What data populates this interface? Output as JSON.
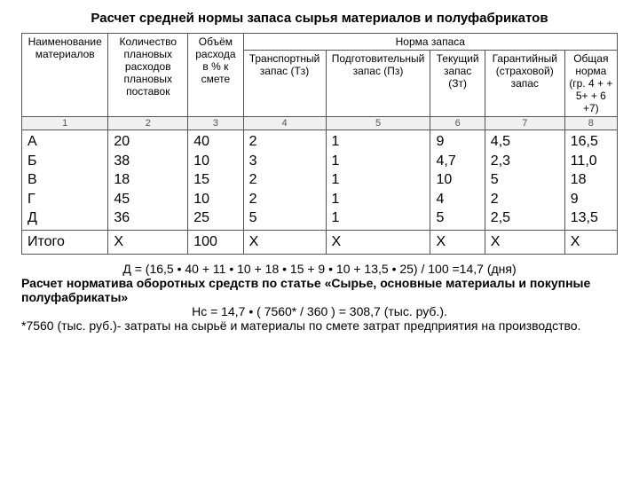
{
  "title": "Расчет средней нормы запаса сырья материалов и полуфабрикатов",
  "headers": {
    "h1": "Наименование материалов",
    "h2": "Количество плановых расходов плановых поставок",
    "h3": "Объём расхода в % к смете",
    "hgroup": "Норма запаса",
    "h4": "Транспортный запас (Тз)",
    "h5": "Подготовительный запас (Пз)",
    "h6": "Текущий запас (Зт)",
    "h7": "Гарантийный (страховой) запас",
    "h8": "Общая норма (гр. 4 + + 5+ + 6 +7)"
  },
  "colnums": {
    "c1": "1",
    "c2": "2",
    "c3": "3",
    "c4": "4",
    "c5": "5",
    "c6": "6",
    "c7": "7",
    "c8": "8"
  },
  "data": {
    "names": [
      "А",
      "Б",
      "В",
      "Г",
      "Д"
    ],
    "col2": [
      "20",
      "38",
      "18",
      "45",
      "36"
    ],
    "col3": [
      "40",
      "10",
      "15",
      "10",
      "25"
    ],
    "col4": [
      "2",
      "3",
      "2",
      "2",
      " 5"
    ],
    "col5": [
      "1",
      "1",
      "1",
      "1",
      "1"
    ],
    "col6": [
      "9",
      "4,7",
      "10",
      "4",
      "5"
    ],
    "col7": [
      "4,5",
      "2,3",
      "5",
      "2",
      "2,5"
    ],
    "col8": [
      "16,5",
      "11,0",
      "18",
      "9",
      "13,5"
    ]
  },
  "totals": {
    "label": "Итого",
    "c2": "Х",
    "c3": "100",
    "c4": "Х",
    "c5": "Х",
    "c6": "Х",
    "c7": "Х",
    "c8": "Х"
  },
  "footer": {
    "line1": "Д = (16,5 • 40 + 11 • 10 + 18 • 15 + 9 • 10 + 13,5 • 25) / 100 =14,7 (дня)",
    "line2": "Расчет норматива оборотных средств по статье «Сырье, основные материалы и покупные полуфабрикаты»",
    "line3": "Нс = 14,7 • ( 7560* / 360 ) = 308,7 (тыс. руб.).",
    "line4": "*7560 (тыс. руб.)- затраты на сырьё и материалы по смете затрат предприятия на производство."
  }
}
